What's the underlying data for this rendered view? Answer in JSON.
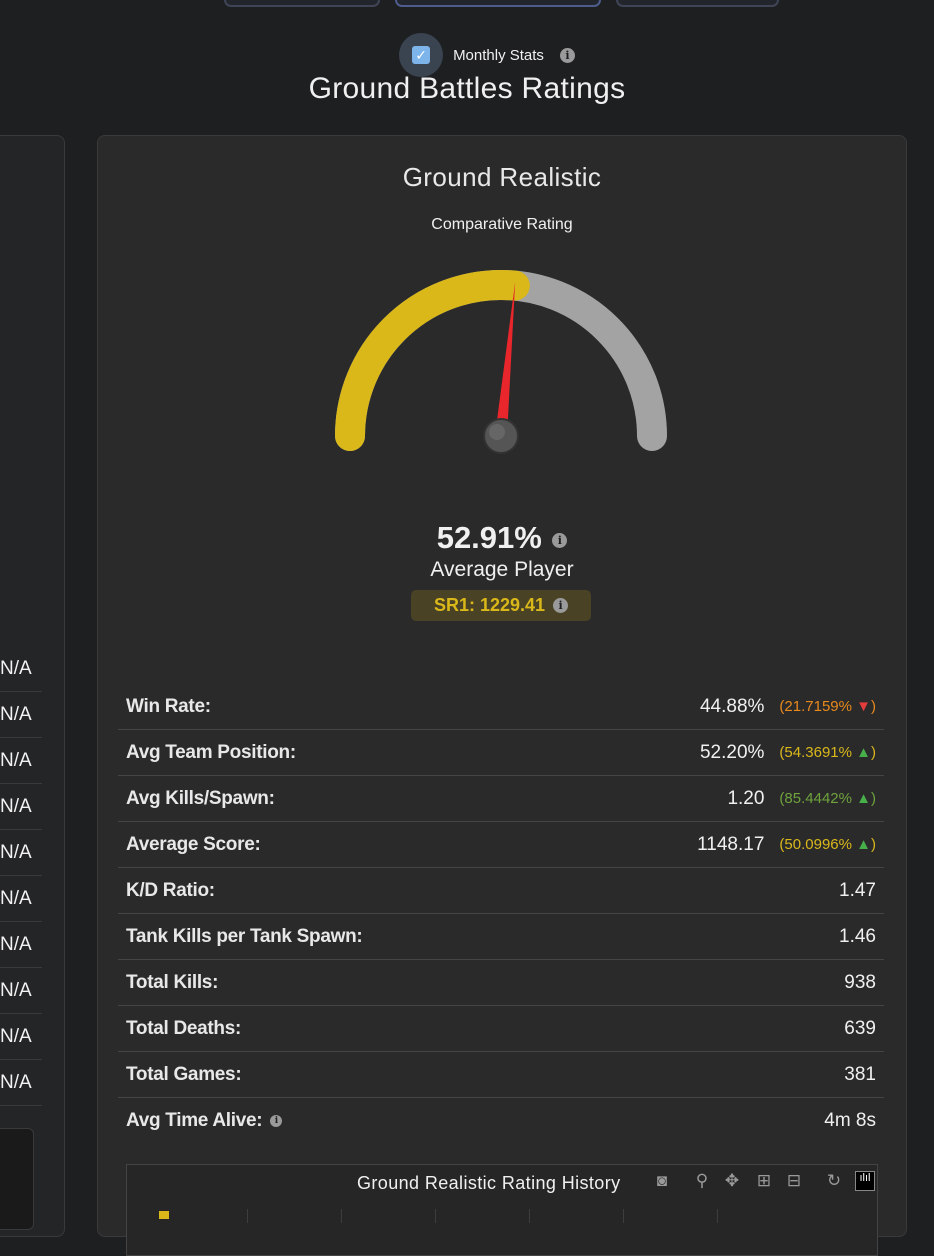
{
  "monthly": {
    "label": "Monthly Stats",
    "checked": true
  },
  "page_title": "Ground Battles Ratings",
  "left_column": {
    "values": [
      "N/A",
      "N/A",
      "N/A",
      "N/A",
      "N/A",
      "N/A",
      "N/A",
      "N/A",
      "N/A",
      "N/A"
    ]
  },
  "card": {
    "title": "Ground Realistic",
    "gauge_label": "Comparative Rating",
    "gauge": {
      "value_percent": 52.91,
      "fill_color": "#dab81a",
      "track_color": "#a3a3a3",
      "needle_color": "#e8262b"
    },
    "percent_text": "52.91%",
    "rating_category": "Average Player",
    "sr_text": "SR1: 1229.41",
    "stats": [
      {
        "label": "Win Rate:",
        "value": "44.88%",
        "comparison": "21.7159%",
        "trend": "down",
        "comparison_color": "orange"
      },
      {
        "label": "Avg Team Position:",
        "value": "52.20%",
        "comparison": "54.3691%",
        "trend": "up",
        "comparison_color": "yellow"
      },
      {
        "label": "Avg Kills/Spawn:",
        "value": "1.20",
        "comparison": "85.4442%",
        "trend": "up",
        "comparison_color": "green"
      },
      {
        "label": "Average Score:",
        "value": "1148.17",
        "comparison": "50.0996%",
        "trend": "up",
        "comparison_color": "yellow"
      },
      {
        "label": "K/D Ratio:",
        "value": "1.47"
      },
      {
        "label": "Tank Kills per Tank Spawn:",
        "value": "1.46"
      },
      {
        "label": "Total Kills:",
        "value": "938"
      },
      {
        "label": "Total Deaths:",
        "value": "639"
      },
      {
        "label": "Total Games:",
        "value": "381"
      },
      {
        "label": "Avg Time Alive:",
        "value": "4m 8s",
        "has_info": true
      }
    ],
    "chart": {
      "title": "Ground Realistic Rating History",
      "toolbar": [
        "camera-icon",
        "zoom-icon",
        "pan-icon",
        "zoom-in-icon",
        "zoom-out-icon",
        "reset-icon",
        "plotly-logo-icon"
      ]
    }
  },
  "colors": {
    "orange": "#e88a1c",
    "yellow": "#dab81a",
    "green": "#6fa33c"
  }
}
